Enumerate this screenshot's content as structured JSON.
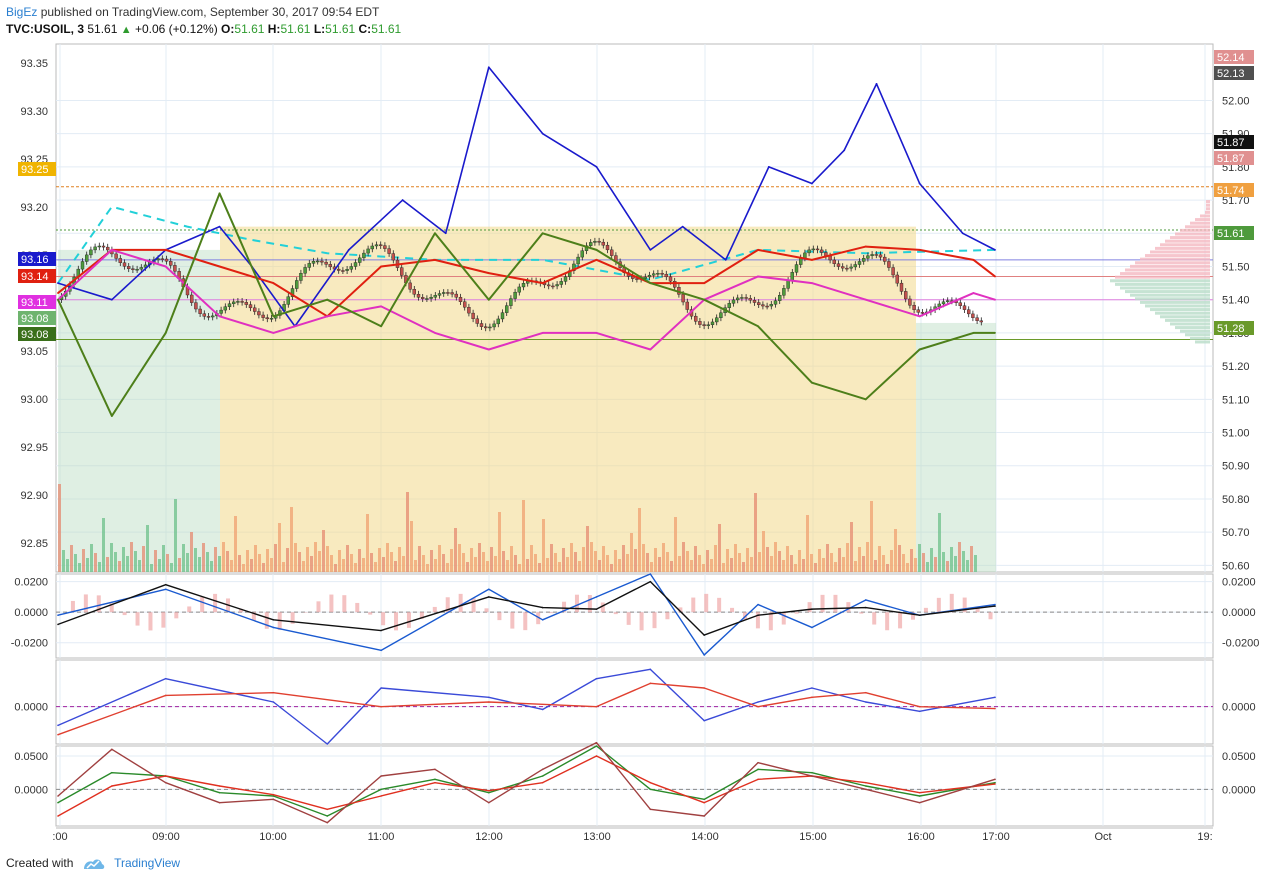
{
  "header": {
    "author": "BigEz",
    "published_text": "published on TradingView.com, September 30, 2017 09:54 EDT",
    "symbol": "TVC:USOIL, 3",
    "last": "51.61",
    "change": "+0.06 (+0.12%)",
    "o_label": "O:",
    "o": "51.61",
    "h_label": "H:",
    "h": "51.61",
    "l_label": "L:",
    "l": "51.61",
    "c_label": "C:",
    "c": "51.61"
  },
  "footer": {
    "created_with": "Created with",
    "brand": "TradingView"
  },
  "colors": {
    "up": "#4e9a3c",
    "down": "#c0504d",
    "blue": "#1a1acc",
    "red": "#e02010",
    "magenta": "#e030c0",
    "olive": "#4d7f1a",
    "cyan": "#22d0d8",
    "cloud_yellow": "#f2d98a",
    "cloud_green": "#b9dcc0"
  },
  "chart_data": [
    {
      "type": "line",
      "panel": "main",
      "x_ticks": [
        ":00",
        "09:00",
        "10:00",
        "11:00",
        "12:00",
        "13:00",
        "14:00",
        "15:00",
        "16:00",
        "17:00",
        "Oct",
        "19:"
      ],
      "left_axis_ticks": [
        "93.35",
        "93.30",
        "93.25",
        "93.20",
        "93.15",
        "93.10",
        "93.05",
        "93.00",
        "92.95",
        "92.90",
        "92.85"
      ],
      "right_axis_ticks": [
        "52.00",
        "51.90",
        "51.80",
        "51.70",
        "51.60",
        "51.50",
        "51.40",
        "51.30",
        "51.20",
        "51.10",
        "51.00",
        "50.90",
        "50.80",
        "50.70",
        "50.60"
      ],
      "left_ylim": [
        92.82,
        93.37
      ],
      "right_ylim": [
        50.58,
        52.17
      ],
      "left_badges": [
        {
          "text": "93.25",
          "color": "#f0b400"
        },
        {
          "text": "93.16",
          "color": "#1a1acc"
        },
        {
          "text": "93.14",
          "color": "#e02010"
        },
        {
          "text": "93.11",
          "color": "#e030e0"
        },
        {
          "text": "93.08",
          "color": "#6fb46f"
        },
        {
          "text": "93.08",
          "color": "#3a6f1a"
        }
      ],
      "right_badges": [
        {
          "text": "52.14",
          "color": "#e09090"
        },
        {
          "text": "52.13",
          "color": "#505050"
        },
        {
          "text": "51.87",
          "color": "#111111"
        },
        {
          "text": "51.87",
          "color": "#e09090"
        },
        {
          "text": "51.74",
          "color": "#f0a040"
        },
        {
          "text": "51.61",
          "color": "#4e9a3c"
        },
        {
          "text": "51.28",
          "color": "#6a9a2a"
        }
      ],
      "series": [
        {
          "color": "#1a1acc",
          "x": [
            0,
            5,
            10,
            15,
            18,
            22,
            27,
            32,
            36,
            40,
            45,
            50,
            55,
            58,
            62,
            66,
            70,
            73,
            76,
            80,
            84,
            87
          ],
          "y": [
            51.45,
            51.4,
            51.55,
            51.62,
            51.5,
            51.32,
            51.55,
            51.7,
            51.6,
            52.1,
            51.9,
            51.8,
            51.55,
            51.62,
            51.52,
            51.8,
            51.75,
            51.85,
            52.05,
            51.75,
            51.6,
            51.55
          ]
        },
        {
          "color": "#e02010",
          "x": [
            0,
            5,
            10,
            15,
            20,
            25,
            30,
            35,
            40,
            45,
            50,
            55,
            60,
            65,
            70,
            75,
            80,
            85,
            87
          ],
          "y": [
            51.42,
            51.55,
            51.55,
            51.5,
            51.45,
            51.35,
            51.5,
            51.52,
            51.48,
            51.45,
            51.52,
            51.45,
            51.45,
            51.55,
            51.52,
            51.56,
            51.55,
            51.52,
            51.47
          ]
        },
        {
          "color": "#e030c0",
          "x": [
            0,
            5,
            10,
            15,
            20,
            25,
            30,
            35,
            40,
            45,
            50,
            55,
            60,
            65,
            70,
            75,
            80,
            85,
            87
          ],
          "y": [
            51.4,
            51.55,
            51.5,
            51.35,
            51.3,
            51.35,
            51.38,
            51.3,
            51.25,
            51.3,
            51.3,
            51.25,
            51.4,
            51.47,
            51.45,
            51.4,
            51.35,
            51.42,
            51.4
          ]
        },
        {
          "color": "#4d7f1a",
          "x": [
            0,
            5,
            10,
            15,
            20,
            25,
            30,
            35,
            40,
            45,
            50,
            55,
            60,
            65,
            70,
            75,
            80,
            85,
            87
          ],
          "y": [
            51.4,
            51.05,
            51.3,
            51.72,
            51.35,
            51.4,
            51.32,
            51.6,
            51.4,
            51.6,
            51.55,
            51.45,
            51.4,
            51.32,
            51.15,
            51.1,
            51.25,
            51.3,
            51.3
          ]
        }
      ]
    },
    {
      "type": "line",
      "panel": "oscillator-1",
      "right_axis_ticks": [
        "0.0200",
        "0.0000",
        "-0.0200"
      ],
      "left_axis_ticks": [
        "0.0200",
        "0.0000",
        "-0.0200"
      ],
      "ylim": [
        -0.03,
        0.025
      ],
      "series": [
        {
          "color": "#1a5ad0",
          "x": [
            0,
            10,
            20,
            30,
            40,
            45,
            50,
            55,
            60,
            65,
            70,
            75,
            80,
            87
          ],
          "y": [
            -0.002,
            0.015,
            -0.01,
            -0.025,
            0.015,
            -0.005,
            0.01,
            0.025,
            -0.028,
            0.005,
            -0.01,
            0.008,
            -0.002,
            0.005
          ]
        },
        {
          "color": "#111111",
          "x": [
            0,
            10,
            20,
            30,
            40,
            45,
            50,
            55,
            60,
            65,
            70,
            75,
            80,
            87
          ],
          "y": [
            -0.008,
            0.018,
            -0.005,
            -0.012,
            0.01,
            0.003,
            0.002,
            0.02,
            -0.015,
            -0.002,
            0.002,
            0.003,
            -0.002,
            0.004
          ]
        }
      ]
    },
    {
      "type": "line",
      "panel": "oscillator-2",
      "right_axis_ticks": [
        "0.0000"
      ],
      "left_axis_ticks": [
        "0.0000"
      ],
      "ylim": [
        -0.04,
        0.05
      ],
      "series": [
        {
          "color": "#3a4ad8",
          "x": [
            0,
            10,
            20,
            25,
            30,
            40,
            45,
            50,
            55,
            60,
            65,
            70,
            75,
            80,
            87
          ],
          "y": [
            -0.02,
            0.03,
            0.005,
            -0.04,
            0.02,
            0.01,
            -0.003,
            0.03,
            0.04,
            -0.015,
            0.005,
            0.02,
            0.005,
            -0.005,
            0.01
          ]
        },
        {
          "color": "#e04030",
          "x": [
            0,
            10,
            20,
            30,
            40,
            50,
            55,
            60,
            65,
            70,
            75,
            80,
            87
          ],
          "y": [
            -0.03,
            0.012,
            0.015,
            0.0,
            0.005,
            0.0,
            0.025,
            0.02,
            0.0,
            0.01,
            0.015,
            0.0,
            -0.002
          ]
        }
      ]
    },
    {
      "type": "line",
      "panel": "oscillator-3",
      "right_axis_ticks": [
        "0.0500",
        "0.0000"
      ],
      "left_axis_ticks": [
        "0.0500",
        "0.0000"
      ],
      "ylim": [
        -0.055,
        0.065
      ],
      "series": [
        {
          "color": "#2a8a2a",
          "x": [
            0,
            5,
            10,
            15,
            20,
            25,
            30,
            35,
            40,
            45,
            50,
            55,
            60,
            65,
            70,
            75,
            80,
            87
          ],
          "y": [
            -0.02,
            0.025,
            0.02,
            -0.005,
            -0.01,
            -0.04,
            0.0,
            0.015,
            -0.005,
            0.02,
            0.065,
            0.0,
            -0.015,
            0.03,
            0.025,
            0.005,
            -0.01,
            0.01
          ]
        },
        {
          "color": "#e03020",
          "x": [
            0,
            5,
            10,
            15,
            20,
            25,
            30,
            35,
            40,
            45,
            50,
            55,
            60,
            65,
            70,
            75,
            80,
            87
          ],
          "y": [
            -0.04,
            0.005,
            0.02,
            0.005,
            -0.008,
            -0.03,
            -0.01,
            0.01,
            -0.002,
            0.01,
            0.05,
            0.01,
            -0.02,
            0.015,
            0.02,
            0.01,
            -0.005,
            0.008
          ]
        },
        {
          "color": "#a04040",
          "x": [
            0,
            5,
            10,
            15,
            20,
            25,
            30,
            35,
            40,
            45,
            50,
            55,
            60,
            65,
            70,
            75,
            80,
            87
          ],
          "y": [
            -0.01,
            0.06,
            0.01,
            -0.02,
            -0.015,
            -0.05,
            0.02,
            0.03,
            -0.02,
            0.03,
            0.07,
            -0.03,
            -0.04,
            0.04,
            0.02,
            0.0,
            -0.02,
            0.015
          ]
        }
      ]
    }
  ]
}
